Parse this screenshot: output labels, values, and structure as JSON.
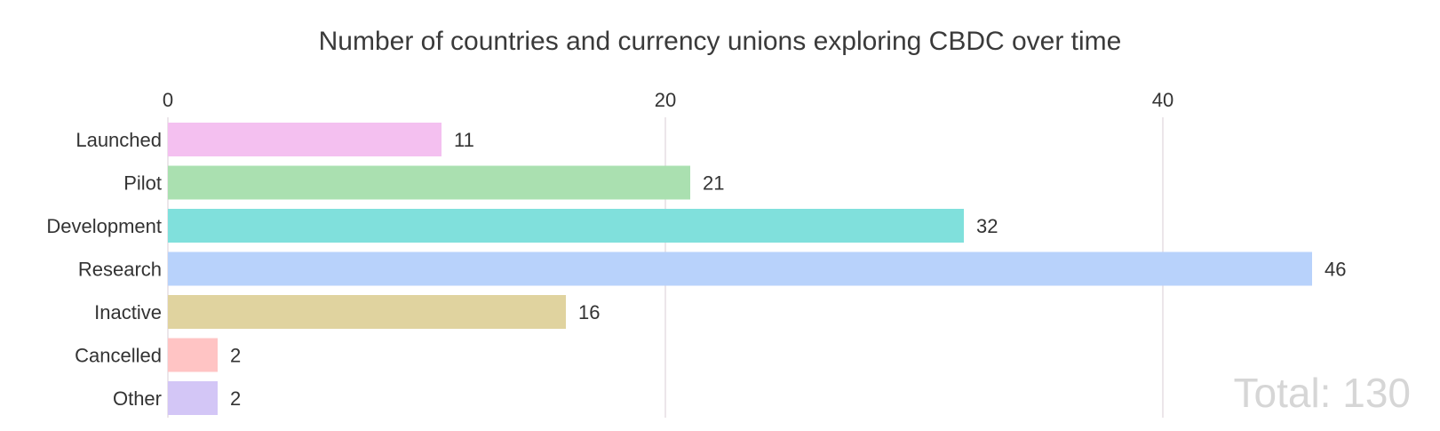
{
  "chart_data": {
    "type": "bar",
    "orientation": "horizontal",
    "title": "Number of countries and currency unions exploring CBDC over time",
    "categories": [
      "Launched",
      "Pilot",
      "Development",
      "Research",
      "Inactive",
      "Cancelled",
      "Other"
    ],
    "values": [
      11,
      21,
      32,
      46,
      16,
      2,
      2
    ],
    "colors": [
      "#f4c0f0",
      "#aae0b0",
      "#80e0dc",
      "#b8d2fb",
      "#e0d39f",
      "#ffc4c4",
      "#d3c6f6"
    ],
    "xticks": [
      0,
      20,
      40
    ],
    "xlim": [
      0,
      50
    ],
    "grid": true,
    "axis_position": "top",
    "total_label": "Total: 130"
  }
}
